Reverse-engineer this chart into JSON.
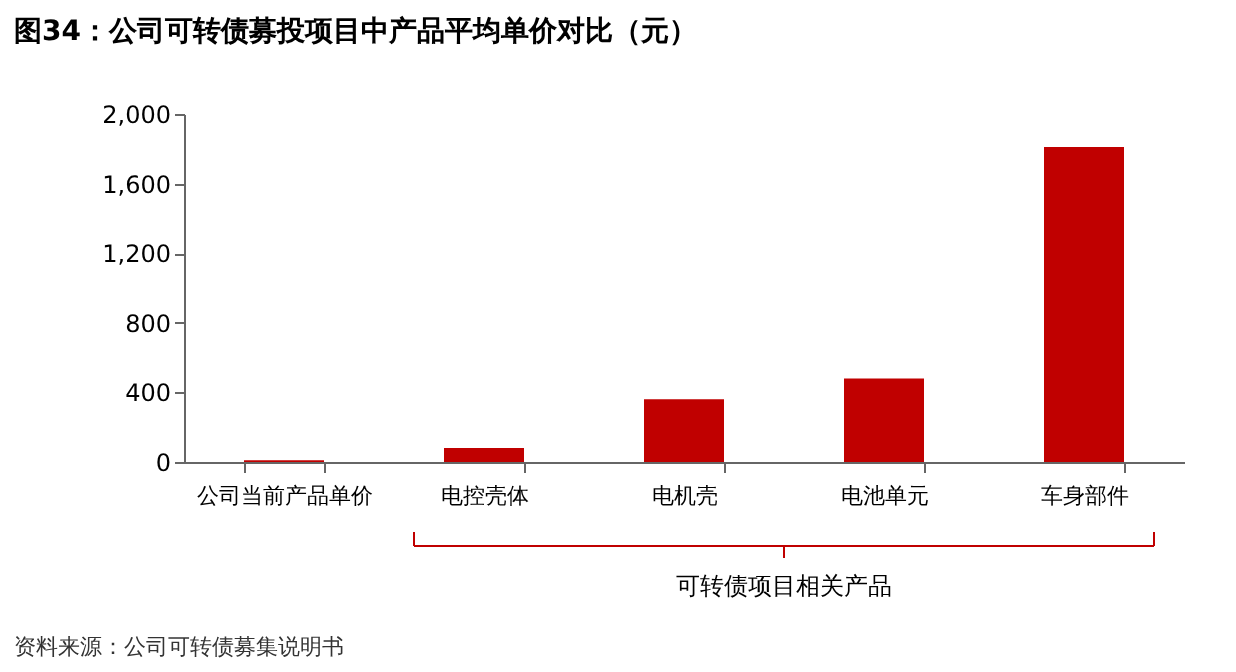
{
  "chart_data": {
    "type": "bar",
    "title": "图34：公司可转债募投项目中产品平均单价对比（元）",
    "categories": [
      "公司当前产品单价",
      "电控壳体",
      "电机壳",
      "电池单元",
      "车身部件"
    ],
    "values": [
      10,
      80,
      360,
      480,
      1810
    ],
    "color": "#c00000",
    "ylim": [
      0,
      2000
    ],
    "yticks": [
      0,
      400,
      800,
      {
        "value": 1200,
        "label": "1,200"
      },
      {
        "value": 1600,
        "label": "1,600"
      },
      {
        "value": 2000,
        "label": "2,000"
      }
    ],
    "grid": false,
    "annotations": [
      "可转债项目相关产品",
      "资料来源：公司可转债募集说明书"
    ]
  }
}
